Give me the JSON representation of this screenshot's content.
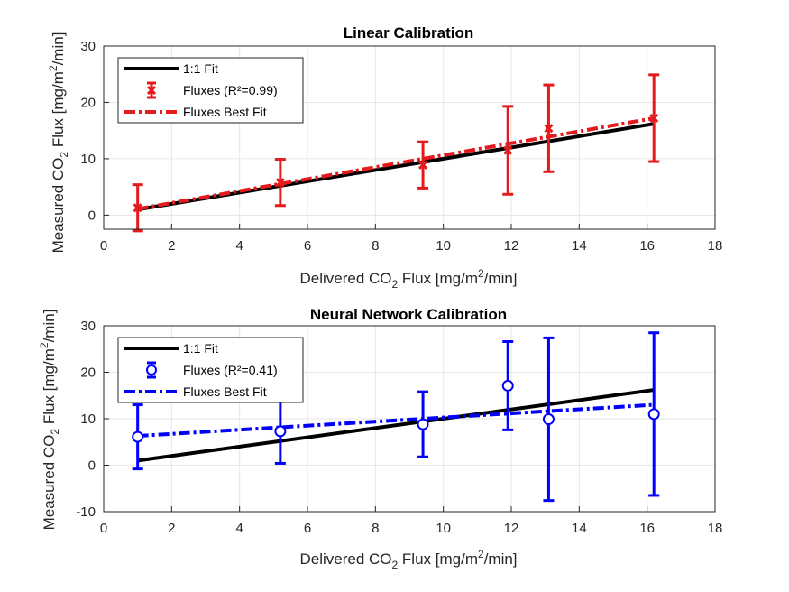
{
  "chart_data": [
    {
      "type": "scatter",
      "title": "Linear Calibration",
      "xlabel": {
        "a": "Delivered CO",
        "sub": "2",
        "b": " Flux [mg/m",
        "sup": "2",
        "c": "/min]"
      },
      "ylabel": {
        "a": "Measured CO",
        "sub": "2",
        "b": "  Flux [mg/m",
        "sup": "2",
        "c": "/min]"
      },
      "xlim": [
        0,
        18
      ],
      "ylim": [
        -2.5,
        30
      ],
      "xticks": [
        "0",
        "2",
        "4",
        "6",
        "8",
        "10",
        "12",
        "14",
        "16",
        "18"
      ],
      "yticks": [
        "0",
        "10",
        "20",
        "30"
      ],
      "grid": true,
      "legend_position": "top-left",
      "color": "#e41a1c",
      "marker": "x",
      "ideal_line": {
        "name": "1:1 Fit",
        "x": [
          1.0,
          16.2
        ],
        "y": [
          1.0,
          16.2
        ]
      },
      "series": [
        {
          "name": "Fluxes (R²=0.99)",
          "x": [
            1.0,
            5.2,
            9.4,
            11.9,
            13.1,
            16.2
          ],
          "y": [
            1.3,
            5.8,
            8.9,
            11.5,
            15.4,
            17.2
          ],
          "err": [
            4.1,
            4.1,
            4.1,
            7.8,
            7.7,
            7.7
          ]
        }
      ],
      "fit_line": {
        "name": "Fluxes Best Fit",
        "x": [
          1.0,
          16.2
        ],
        "y": [
          1.1,
          17.2
        ]
      }
    },
    {
      "type": "scatter",
      "title": "Neural Network Calibration",
      "xlabel": {
        "a": "Delivered CO",
        "sub": "2",
        "b": " Flux [mg/m",
        "sup": "2",
        "c": "/min]"
      },
      "ylabel": {
        "a": "Measured CO",
        "sub": "2",
        "b": "  Flux [mg/m",
        "sup": "2",
        "c": "/min]"
      },
      "xlim": [
        0,
        18
      ],
      "ylim": [
        -10,
        30
      ],
      "xticks": [
        "0",
        "2",
        "4",
        "6",
        "8",
        "10",
        "12",
        "14",
        "16",
        "18"
      ],
      "yticks": [
        "-10",
        "0",
        "10",
        "20",
        "30"
      ],
      "grid": true,
      "legend_position": "top-left",
      "color": "#0000ff",
      "marker": "o",
      "ideal_line": {
        "name": "1:1 Fit",
        "x": [
          1.0,
          16.2
        ],
        "y": [
          1.0,
          16.2
        ]
      },
      "series": [
        {
          "name": "Fluxes (R²=0.41)",
          "x": [
            1.0,
            5.2,
            9.4,
            11.9,
            13.1,
            16.2
          ],
          "y": [
            6.1,
            7.3,
            8.8,
            17.1,
            9.9,
            11.0
          ],
          "err": [
            6.9,
            6.9,
            7.0,
            9.5,
            17.5,
            17.5
          ]
        }
      ],
      "fit_line": {
        "name": "Fluxes Best Fit",
        "x": [
          1.0,
          16.2
        ],
        "y": [
          6.3,
          13.0
        ]
      }
    }
  ]
}
